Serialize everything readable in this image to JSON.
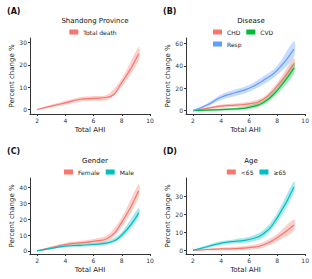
{
  "chart_data": [
    {
      "type": "line",
      "title": "(A)",
      "subtitle": "Shandong Province",
      "x_label": "Total AHI",
      "y_label": "Percent change %",
      "x": [
        2,
        3,
        4,
        5,
        6,
        7,
        8,
        9.2
      ],
      "xlim": [
        1.5,
        10
      ],
      "xticks": [
        2,
        4,
        6,
        8,
        10
      ],
      "ylim": [
        -2,
        32
      ],
      "yticks": [
        0,
        10,
        20,
        30
      ],
      "grid": false,
      "legend": "top",
      "series": [
        {
          "name": "Total death",
          "color": "#F8766D",
          "values": [
            0,
            1.5,
            3,
            4.5,
            5,
            5.5,
            12,
            25
          ],
          "lower": [
            -0.2,
            0.9,
            2.1,
            3.5,
            4,
            4.3,
            10.2,
            22
          ],
          "upper": [
            0.2,
            2.1,
            3.9,
            5.5,
            6,
            6.7,
            13.8,
            28
          ]
        }
      ]
    },
    {
      "type": "line",
      "title": "(B)",
      "subtitle": "Disease",
      "x_label": "Total AHI",
      "y_label": "Percent change %",
      "x": [
        2,
        3,
        4,
        5,
        6,
        7,
        8,
        9.2
      ],
      "xlim": [
        1.5,
        10
      ],
      "xticks": [
        2,
        4,
        6,
        8,
        10
      ],
      "ylim": [
        -3,
        65
      ],
      "yticks": [
        0,
        20,
        40,
        60
      ],
      "grid": false,
      "legend": "top",
      "series": [
        {
          "name": "CHD",
          "color": "#F8766D",
          "values": [
            0,
            2,
            4,
            5,
            6,
            10,
            22,
            42
          ],
          "lower": [
            -0.2,
            1,
            2.5,
            3.5,
            4,
            8,
            19,
            37
          ],
          "upper": [
            0.2,
            3,
            5.5,
            6.5,
            8,
            12,
            25,
            47
          ]
        },
        {
          "name": "CVD",
          "color": "#00BA38",
          "values": [
            0,
            0.5,
            1,
            1.5,
            3,
            7,
            18,
            38
          ],
          "lower": [
            -0.2,
            -0.3,
            0,
            0.3,
            1.5,
            5,
            15,
            33
          ],
          "upper": [
            0.2,
            1.3,
            2,
            2.7,
            4.5,
            9,
            21,
            43
          ]
        },
        {
          "name": "Resp",
          "color": "#619CFF",
          "values": [
            0,
            5,
            12,
            16,
            20,
            27,
            36,
            55
          ],
          "lower": [
            -0.3,
            3.5,
            9.5,
            13,
            17,
            23.5,
            32,
            48
          ],
          "upper": [
            0.3,
            6.5,
            14.5,
            19,
            23,
            30.5,
            40,
            62
          ]
        }
      ]
    },
    {
      "type": "line",
      "title": "(C)",
      "subtitle": "Gender",
      "x_label": "Total AHI",
      "y_label": "Percent change %",
      "x": [
        2,
        3,
        4,
        5,
        6,
        7,
        8,
        9.2
      ],
      "xlim": [
        1.5,
        10
      ],
      "xticks": [
        2,
        4,
        6,
        8,
        10
      ],
      "ylim": [
        -2,
        46
      ],
      "yticks": [
        0,
        10,
        20,
        30,
        40
      ],
      "grid": false,
      "legend": "top",
      "series": [
        {
          "name": "Female",
          "color": "#F8766D",
          "values": [
            0,
            2,
            4,
            5,
            6,
            8,
            18,
            38
          ],
          "lower": [
            -0.2,
            1.2,
            3,
            3.8,
            4.5,
            6,
            15,
            34
          ],
          "upper": [
            0.2,
            2.8,
            5,
            6.2,
            7.5,
            10,
            21,
            42
          ]
        },
        {
          "name": "Male",
          "color": "#00BFC4",
          "values": [
            0,
            1.5,
            3,
            3.5,
            4,
            5,
            10,
            24
          ],
          "lower": [
            -0.2,
            0.9,
            2.2,
            2.5,
            3,
            3.8,
            8.2,
            21
          ],
          "upper": [
            0.2,
            2.1,
            3.8,
            4.5,
            5,
            6.2,
            11.8,
            27
          ]
        }
      ]
    },
    {
      "type": "line",
      "title": "(D)",
      "subtitle": "Age",
      "x_label": "Total AHI",
      "y_label": "Percent change %",
      "x": [
        2,
        3,
        4,
        5,
        6,
        7,
        8,
        9.2
      ],
      "xlim": [
        1.5,
        10
      ],
      "xticks": [
        2,
        4,
        6,
        8,
        10
      ],
      "ylim": [
        -2,
        40
      ],
      "yticks": [
        0,
        10,
        20,
        30
      ],
      "grid": false,
      "legend": "top",
      "series": [
        {
          "name": "<65",
          "color": "#F8766D",
          "values": [
            0,
            0.5,
            0.8,
            1,
            1.5,
            3,
            7,
            14
          ],
          "lower": [
            -0.2,
            -0.1,
            0,
            0,
            0.3,
            1.5,
            5,
            11
          ],
          "upper": [
            0.2,
            1.1,
            1.6,
            2,
            2.7,
            4.5,
            9,
            17
          ]
        },
        {
          "name": "≥65",
          "color": "#00BFC4",
          "values": [
            0,
            2,
            4,
            5,
            6,
            9,
            18,
            35
          ],
          "lower": [
            -0.2,
            1.2,
            3,
            3.8,
            4.5,
            7,
            15.5,
            32
          ],
          "upper": [
            0.2,
            2.8,
            5,
            6.2,
            7.5,
            11,
            20.5,
            38
          ]
        }
      ]
    }
  ]
}
